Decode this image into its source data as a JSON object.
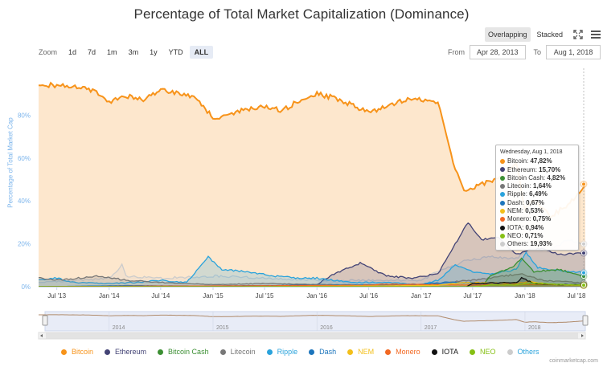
{
  "title": "Percentage of Total Market Capitalization (Dominance)",
  "zoom": {
    "label": "Zoom",
    "buttons": [
      "1d",
      "7d",
      "1m",
      "3m",
      "1y",
      "YTD",
      "ALL"
    ],
    "active": "ALL"
  },
  "mode": {
    "overlapping": "Overlapping",
    "stacked": "Stacked",
    "active": "Overlapping"
  },
  "range": {
    "from_label": "From",
    "from": "Apr 28, 2013",
    "to_label": "To",
    "to": "Aug 1, 2018"
  },
  "credit": "coinmarketcap.com",
  "tooltip": {
    "date": "Wednesday, Aug 1, 2018",
    "rows": [
      {
        "name": "Bitcoin",
        "value": "47,82%",
        "color": "#f7931a"
      },
      {
        "name": "Ethereum",
        "value": "15,70%",
        "color": "#434375"
      },
      {
        "name": "Bitcoin Cash",
        "value": "4,82%",
        "color": "#3c8f33"
      },
      {
        "name": "Litecoin",
        "value": "1,64%",
        "color": "#777777"
      },
      {
        "name": "Ripple",
        "value": "6,49%",
        "color": "#2aa3dc"
      },
      {
        "name": "Dash",
        "value": "0,67%",
        "color": "#1c75bc"
      },
      {
        "name": "NEM",
        "value": "0,53%",
        "color": "#f3bf1a"
      },
      {
        "name": "Monero",
        "value": "0,75%",
        "color": "#f26822"
      },
      {
        "name": "IOTA",
        "value": "0,94%",
        "color": "#111111"
      },
      {
        "name": "NEO",
        "value": "0,71%",
        "color": "#86c014"
      },
      {
        "name": "Others",
        "value": "19,93%",
        "color": "#cccccc"
      }
    ]
  },
  "chart_data": {
    "type": "area",
    "title": "Percentage of Total Market Capitalization (Dominance)",
    "ylabel": "Percentage of Total Market Cap",
    "ylim": [
      0,
      100
    ],
    "yticks": [
      0,
      20,
      40,
      60,
      80
    ],
    "ytick_labels": [
      "0%",
      "20%",
      "40%",
      "60%",
      "80%"
    ],
    "xlim": [
      "2013-04-28",
      "2018-08-01"
    ],
    "xticks": [
      "2013-07-01",
      "2014-01-01",
      "2014-07-01",
      "2015-01-01",
      "2015-07-01",
      "2016-01-01",
      "2016-07-01",
      "2017-01-01",
      "2017-07-01",
      "2018-01-01",
      "2018-07-01"
    ],
    "xtick_labels": [
      "Jul '13",
      "Jan '14",
      "Jul '14",
      "Jan '15",
      "Jul '15",
      "Jan '16",
      "Jul '16",
      "Jan '17",
      "Jul '17",
      "Jan '18",
      "Jul '18"
    ],
    "navigator_labels": [
      "2014",
      "2015",
      "2016",
      "2017",
      "2018"
    ],
    "legend_position": "bottom",
    "grid": false,
    "series": [
      {
        "name": "Bitcoin",
        "color": "#f7931a",
        "x": [
          "2013-04-28",
          "2013-07-01",
          "2013-10-01",
          "2013-12-01",
          "2014-01-01",
          "2014-03-01",
          "2014-05-01",
          "2014-07-01",
          "2014-09-01",
          "2014-11-01",
          "2015-01-01",
          "2015-03-01",
          "2015-05-01",
          "2015-07-01",
          "2015-09-01",
          "2015-11-01",
          "2016-01-01",
          "2016-03-01",
          "2016-05-01",
          "2016-07-01",
          "2016-09-01",
          "2016-11-01",
          "2017-01-01",
          "2017-03-01",
          "2017-04-01",
          "2017-05-01",
          "2017-06-01",
          "2017-07-01",
          "2017-09-01",
          "2017-11-01",
          "2017-12-01",
          "2018-01-01",
          "2018-02-01",
          "2018-04-01",
          "2018-06-01",
          "2018-08-01"
        ],
        "y": [
          94,
          94,
          93,
          90,
          86,
          89,
          87,
          92,
          90,
          88,
          79,
          80,
          83,
          84,
          82,
          87,
          90,
          88,
          85,
          81,
          84,
          87,
          87,
          86,
          70,
          55,
          44,
          46,
          49,
          54,
          58,
          36,
          40,
          33,
          38,
          47.82
        ]
      },
      {
        "name": "Ethereum",
        "color": "#434375",
        "x": [
          "2013-04-28",
          "2015-08-01",
          "2016-01-01",
          "2016-03-01",
          "2016-06-01",
          "2016-09-01",
          "2016-12-01",
          "2017-03-01",
          "2017-05-01",
          "2017-06-15",
          "2017-08-01",
          "2017-10-01",
          "2017-12-01",
          "2018-01-15",
          "2018-03-01",
          "2018-05-01",
          "2018-08-01"
        ],
        "y": [
          0,
          0.5,
          1,
          6,
          11,
          5,
          4,
          6,
          20,
          30,
          22,
          23,
          15,
          17,
          18,
          15,
          15.7
        ]
      },
      {
        "name": "Bitcoin Cash",
        "color": "#3c8f33",
        "x": [
          "2013-04-28",
          "2017-08-01",
          "2017-09-01",
          "2017-11-15",
          "2017-12-20",
          "2018-02-01",
          "2018-05-01",
          "2018-08-01"
        ],
        "y": [
          0,
          0,
          5,
          9,
          13,
          7,
          8,
          4.82
        ]
      },
      {
        "name": "Litecoin",
        "color": "#777777",
        "x": [
          "2013-04-28",
          "2013-07-01",
          "2013-12-01",
          "2014-03-01",
          "2014-07-01",
          "2015-01-01",
          "2015-07-01",
          "2016-01-01",
          "2017-01-01",
          "2017-04-01",
          "2017-07-01",
          "2017-12-15",
          "2018-03-01",
          "2018-08-01"
        ],
        "y": [
          4,
          3,
          5,
          3,
          2,
          1,
          1.5,
          1,
          0.7,
          2,
          3,
          6,
          3,
          1.64
        ]
      },
      {
        "name": "Ripple",
        "color": "#2aa3dc",
        "x": [
          "2013-04-28",
          "2013-07-01",
          "2013-09-01",
          "2014-01-01",
          "2014-04-01",
          "2014-07-01",
          "2014-10-01",
          "2014-12-15",
          "2015-02-01",
          "2015-05-01",
          "2015-08-01",
          "2015-11-01",
          "2016-01-01",
          "2016-05-01",
          "2016-09-01",
          "2017-01-01",
          "2017-03-01",
          "2017-05-01",
          "2017-07-01",
          "2017-09-01",
          "2017-12-01",
          "2018-01-05",
          "2018-02-15",
          "2018-04-01",
          "2018-06-01",
          "2018-08-01"
        ],
        "y": [
          3,
          4,
          2,
          1.5,
          2,
          3,
          2,
          14,
          8,
          7,
          5,
          4,
          4,
          2,
          2,
          1,
          3,
          10,
          7,
          6,
          8,
          16,
          9,
          8,
          7,
          6.49
        ]
      },
      {
        "name": "Dash",
        "color": "#1c75bc",
        "x": [
          "2013-04-28",
          "2014-03-01",
          "2015-01-01",
          "2016-01-01",
          "2017-01-01",
          "2017-04-01",
          "2017-07-01",
          "2017-12-01",
          "2018-04-01",
          "2018-08-01"
        ],
        "y": [
          0,
          0.5,
          0.3,
          0.5,
          1.2,
          2,
          2,
          1.5,
          1,
          0.67
        ]
      },
      {
        "name": "NEM",
        "color": "#f3bf1a",
        "x": [
          "2013-04-28",
          "2015-04-01",
          "2016-06-01",
          "2017-03-01",
          "2017-06-01",
          "2017-12-01",
          "2018-01-15",
          "2018-04-01",
          "2018-08-01"
        ],
        "y": [
          0,
          0,
          0.3,
          0.6,
          2,
          1.5,
          2.5,
          1,
          0.53
        ]
      },
      {
        "name": "Monero",
        "color": "#f26822",
        "x": [
          "2013-04-28",
          "2014-06-01",
          "2015-06-01",
          "2016-06-01",
          "2016-09-01",
          "2017-06-01",
          "2017-12-01",
          "2018-04-01",
          "2018-08-01"
        ],
        "y": [
          0,
          0.3,
          0.4,
          0.6,
          1.2,
          0.8,
          1,
          1,
          0.75
        ]
      },
      {
        "name": "IOTA",
        "color": "#111111",
        "x": [
          "2013-04-28",
          "2017-06-10",
          "2017-07-01",
          "2017-12-01",
          "2017-12-20",
          "2018-02-01",
          "2018-05-01",
          "2018-08-01"
        ],
        "y": [
          0,
          0,
          1.5,
          2,
          4,
          1.5,
          1,
          0.94
        ]
      },
      {
        "name": "NEO",
        "color": "#86c014",
        "x": [
          "2013-04-28",
          "2017-07-01",
          "2017-09-01",
          "2017-12-01",
          "2018-01-20",
          "2018-04-01",
          "2018-08-01"
        ],
        "y": [
          0,
          0,
          0.8,
          0.8,
          1.8,
          1.2,
          0.71
        ]
      },
      {
        "name": "Others",
        "color": "#cccccc",
        "x": [
          "2013-04-28",
          "2013-10-01",
          "2014-01-01",
          "2014-02-15",
          "2014-03-01",
          "2014-07-01",
          "2015-01-01",
          "2015-07-01",
          "2016-01-01",
          "2016-07-01",
          "2017-01-01",
          "2017-03-01",
          "2017-06-01",
          "2017-09-01",
          "2017-12-01",
          "2018-01-15",
          "2018-04-01",
          "2018-06-01",
          "2018-08-01"
        ],
        "y": [
          2,
          3,
          4,
          10,
          5,
          4,
          5,
          4,
          3,
          3,
          3,
          7,
          12,
          14,
          13,
          18,
          17,
          22,
          19.93
        ]
      }
    ]
  }
}
